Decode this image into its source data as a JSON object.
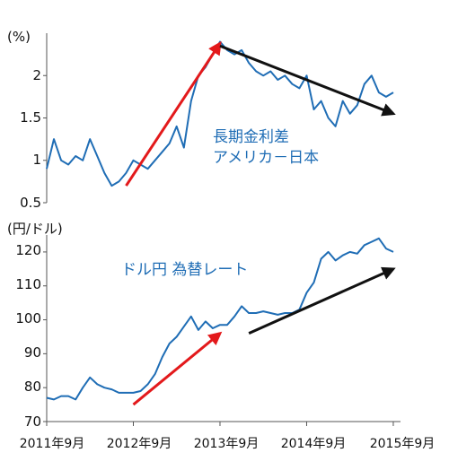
{
  "chart_data": [
    {
      "type": "line",
      "unit_label": "(%)",
      "annotation_lines": [
        "長期金利差",
        "アメリカ－日本"
      ],
      "yticks": [
        "2",
        "1.5",
        "1",
        "0.5"
      ],
      "ylim": [
        0.5,
        2.5
      ],
      "xlim": [
        "2011-09",
        "2015-10"
      ],
      "grid": false,
      "series": [
        {
          "color": "#1f6db5",
          "x": [
            "2011-09",
            "2011-10",
            "2011-11",
            "2011-12",
            "2012-01",
            "2012-02",
            "2012-03",
            "2012-04",
            "2012-05",
            "2012-06",
            "2012-07",
            "2012-08",
            "2012-09",
            "2012-10",
            "2012-11",
            "2012-12",
            "2013-01",
            "2013-02",
            "2013-03",
            "2013-04",
            "2013-05",
            "2013-06",
            "2013-07",
            "2013-08",
            "2013-09",
            "2013-10",
            "2013-11",
            "2013-12",
            "2014-01",
            "2014-02",
            "2014-03",
            "2014-04",
            "2014-05",
            "2014-06",
            "2014-07",
            "2014-08",
            "2014-09",
            "2014-10",
            "2014-11",
            "2014-12",
            "2015-01",
            "2015-02",
            "2015-03",
            "2015-04",
            "2015-05",
            "2015-06",
            "2015-07",
            "2015-08",
            "2015-09"
          ],
          "values": [
            0.9,
            1.25,
            1.0,
            0.95,
            1.05,
            1.0,
            1.25,
            1.05,
            0.85,
            0.7,
            0.75,
            0.85,
            1.0,
            0.95,
            0.9,
            1.0,
            1.1,
            1.2,
            1.4,
            1.15,
            1.7,
            2.0,
            2.1,
            2.25,
            2.4,
            2.3,
            2.25,
            2.3,
            2.15,
            2.05,
            2.0,
            2.05,
            1.95,
            2.0,
            1.9,
            1.85,
            2.0,
            1.6,
            1.7,
            1.5,
            1.4,
            1.7,
            1.55,
            1.65,
            1.9,
            2.0,
            1.8,
            1.75,
            1.8
          ]
        }
      ],
      "arrows": [
        {
          "color": "#e3191b",
          "from": [
            "2012-08",
            0.7
          ],
          "to": [
            "2013-09",
            2.38
          ]
        },
        {
          "color": "#111111",
          "from": [
            "2013-09",
            2.35
          ],
          "to": [
            "2015-09",
            1.55
          ]
        }
      ]
    },
    {
      "type": "line",
      "unit_label": "(円/ドル)",
      "annotation_lines": [
        "ドル円  為替レート"
      ],
      "yticks": [
        "120",
        "110",
        "100",
        "90",
        "80",
        "70"
      ],
      "ylim": [
        70,
        125
      ],
      "xlim": [
        "2011-09",
        "2015-10"
      ],
      "grid": false,
      "xtick_labels": [
        "2011年9月",
        "2012年9月",
        "2013年9月",
        "2014年9月",
        "2015年9月"
      ],
      "series": [
        {
          "color": "#1f6db5",
          "x": [
            "2011-09",
            "2011-10",
            "2011-11",
            "2011-12",
            "2012-01",
            "2012-02",
            "2012-03",
            "2012-04",
            "2012-05",
            "2012-06",
            "2012-07",
            "2012-08",
            "2012-09",
            "2012-10",
            "2012-11",
            "2012-12",
            "2013-01",
            "2013-02",
            "2013-03",
            "2013-04",
            "2013-05",
            "2013-06",
            "2013-07",
            "2013-08",
            "2013-09",
            "2013-10",
            "2013-11",
            "2013-12",
            "2014-01",
            "2014-02",
            "2014-03",
            "2014-04",
            "2014-05",
            "2014-06",
            "2014-07",
            "2014-08",
            "2014-09",
            "2014-10",
            "2014-11",
            "2014-12",
            "2015-01",
            "2015-02",
            "2015-03",
            "2015-04",
            "2015-05",
            "2015-06",
            "2015-07",
            "2015-08",
            "2015-09"
          ],
          "values": [
            77,
            76.5,
            77.5,
            77.5,
            76.5,
            80,
            83,
            81,
            80,
            79.5,
            78.5,
            78.5,
            78.5,
            79,
            81,
            84,
            89,
            93,
            95,
            98,
            101,
            97,
            99.5,
            97.5,
            98.5,
            98.5,
            101,
            104,
            102,
            102,
            102.5,
            102,
            101.5,
            102,
            102,
            103,
            108,
            111,
            118,
            120,
            117.5,
            119,
            120,
            119.5,
            122,
            123,
            124,
            121,
            120
          ]
        }
      ],
      "arrows": [
        {
          "color": "#e3191b",
          "from": [
            "2012-09",
            75
          ],
          "to": [
            "2013-09",
            96
          ]
        },
        {
          "color": "#111111",
          "from": [
            "2014-01",
            96
          ],
          "to": [
            "2015-09",
            115
          ]
        }
      ]
    }
  ]
}
